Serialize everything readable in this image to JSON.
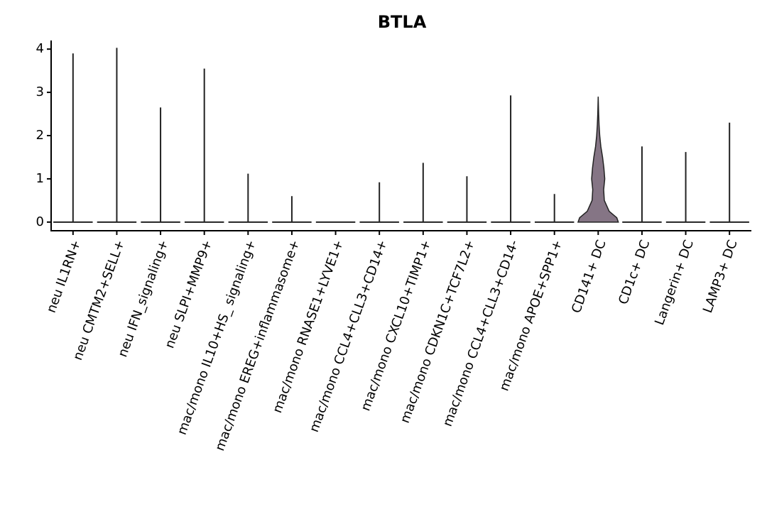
{
  "chart_data": {
    "type": "violin",
    "title": "BTLA",
    "categories": [
      "neu IL1RN+",
      "neu CMTM2+SELL+",
      "neu IFN_signaling+",
      "neu SLPI+MMP9+",
      "mac/mono IL10+HS_ signaling+",
      "mac/mono EREG+inflammasome+",
      "mac/mono RNASE1+LYVE1+",
      "mac/mono CCL4+CLL3+CD14+",
      "mac/mono CXCL10+TIMP1+",
      "mac/mono CDKN1C+TCF7L2+",
      "mac/mono CCL4+CLL3+CD14-",
      "mac/mono APOE+SPP1+",
      "CD141+ DC",
      "CD1c+ DC",
      "Langerin+ DC",
      "LAMP3+ DC"
    ],
    "values": [
      3.9,
      4.03,
      2.65,
      3.55,
      1.12,
      0.6,
      0,
      0.92,
      1.37,
      1.06,
      2.93,
      0.65,
      2.9,
      1.75,
      1.62,
      2.3
    ],
    "density_y": [
      0,
      0.1,
      0.25,
      0.5,
      0.75,
      1,
      1.25,
      1.5,
      1.75,
      2,
      2.25,
      2.5,
      2.9
    ],
    "density": [
      null,
      null,
      null,
      null,
      null,
      null,
      null,
      null,
      null,
      null,
      null,
      null,
      [
        0.92,
        0.85,
        0.5,
        0.28,
        0.25,
        0.3,
        0.26,
        0.2,
        0.12,
        0.07,
        0.04,
        0.02,
        0
      ],
      null,
      null,
      null
    ],
    "color": "#857585",
    "ylim": [
      -0.2,
      4.2
    ],
    "yticks": [
      0,
      1,
      2,
      3,
      4
    ]
  }
}
